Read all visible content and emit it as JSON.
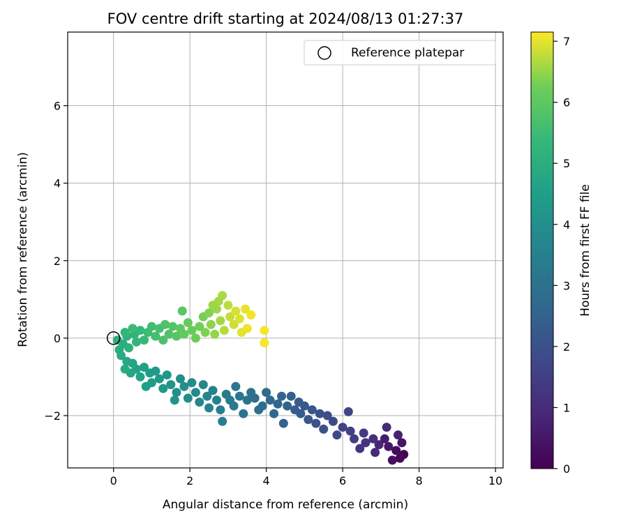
{
  "chart_data": {
    "type": "scatter",
    "title": "FOV centre drift starting at 2024/08/13 01:27:37",
    "xlabel": "Angular distance from reference (arcmin)",
    "ylabel": "Rotation from reference (arcmin)",
    "xlim": [
      -1.2,
      10.2
    ],
    "ylim": [
      -3.35,
      7.9
    ],
    "xticks": [
      0,
      2,
      4,
      6,
      8,
      10
    ],
    "xtick_labels": [
      "0",
      "2",
      "4",
      "6",
      "8",
      "10"
    ],
    "yticks": [
      -2,
      0,
      2,
      4,
      6
    ],
    "ytick_labels": [
      "−2",
      "0",
      "2",
      "4",
      "6"
    ],
    "grid": true,
    "legend": {
      "placement": "top-right",
      "entries": [
        "Reference platepar"
      ]
    },
    "reference_point": {
      "x": 0,
      "y": 0
    },
    "colorbar": {
      "label": "Hours from first FF file",
      "colormap": "viridis",
      "range": [
        0,
        7.15
      ],
      "ticks": [
        0,
        1,
        2,
        3,
        4,
        5,
        6,
        7
      ],
      "tick_labels": [
        "0",
        "1",
        "2",
        "3",
        "4",
        "5",
        "6",
        "7"
      ]
    },
    "series": [
      {
        "points": [
          [
            7.6,
            -3.0,
            0.05
          ],
          [
            7.5,
            -3.1,
            0.15
          ],
          [
            7.4,
            -2.9,
            0.25
          ],
          [
            7.3,
            -3.15,
            0.35
          ],
          [
            7.55,
            -2.7,
            0.45
          ],
          [
            7.2,
            -2.8,
            0.55
          ],
          [
            7.1,
            -2.6,
            0.65
          ],
          [
            7.45,
            -2.5,
            0.75
          ],
          [
            6.95,
            -2.75,
            0.85
          ],
          [
            6.85,
            -2.95,
            0.95
          ],
          [
            7.15,
            -2.3,
            1.0
          ],
          [
            6.8,
            -2.6,
            1.1
          ],
          [
            6.6,
            -2.7,
            1.2
          ],
          [
            6.45,
            -2.85,
            1.3
          ],
          [
            6.55,
            -2.45,
            1.4
          ],
          [
            6.3,
            -2.6,
            1.5
          ],
          [
            6.2,
            -2.4,
            1.55
          ],
          [
            6.0,
            -2.3,
            1.65
          ],
          [
            6.15,
            -1.9,
            1.7
          ],
          [
            5.85,
            -2.5,
            1.8
          ],
          [
            5.75,
            -2.15,
            1.85
          ],
          [
            5.6,
            -2.0,
            1.9
          ],
          [
            5.5,
            -2.35,
            1.95
          ],
          [
            5.4,
            -1.95,
            2.0
          ],
          [
            5.3,
            -2.2,
            2.1
          ],
          [
            5.2,
            -1.85,
            2.15
          ],
          [
            5.1,
            -2.1,
            2.2
          ],
          [
            5.0,
            -1.75,
            2.25
          ],
          [
            4.9,
            -1.95,
            2.3
          ],
          [
            4.85,
            -1.65,
            2.35
          ],
          [
            4.75,
            -1.85,
            2.4
          ],
          [
            4.65,
            -1.5,
            2.45
          ],
          [
            4.55,
            -1.75,
            2.5
          ],
          [
            4.45,
            -2.2,
            2.55
          ],
          [
            4.4,
            -1.5,
            2.6
          ],
          [
            4.3,
            -1.7,
            2.65
          ],
          [
            4.2,
            -1.95,
            2.7
          ],
          [
            4.1,
            -1.6,
            2.75
          ],
          [
            4.0,
            -1.4,
            2.8
          ],
          [
            3.9,
            -1.75,
            2.85
          ],
          [
            3.8,
            -1.85,
            2.9
          ],
          [
            3.7,
            -1.55,
            2.95
          ],
          [
            3.6,
            -1.4,
            3.0
          ],
          [
            3.5,
            -1.6,
            3.05
          ],
          [
            3.4,
            -1.95,
            3.1
          ],
          [
            3.3,
            -1.5,
            3.15
          ],
          [
            3.2,
            -1.25,
            3.2
          ],
          [
            3.15,
            -1.75,
            3.25
          ],
          [
            3.05,
            -1.6,
            3.3
          ],
          [
            2.95,
            -1.45,
            3.35
          ],
          [
            2.85,
            -2.15,
            3.4
          ],
          [
            2.8,
            -1.85,
            3.45
          ],
          [
            2.7,
            -1.6,
            3.5
          ],
          [
            2.6,
            -1.35,
            3.55
          ],
          [
            2.5,
            -1.8,
            3.6
          ],
          [
            2.45,
            -1.5,
            3.65
          ],
          [
            2.35,
            -1.2,
            3.7
          ],
          [
            2.25,
            -1.65,
            3.75
          ],
          [
            2.15,
            -1.4,
            3.8
          ],
          [
            2.05,
            -1.15,
            3.85
          ],
          [
            1.95,
            -1.55,
            3.9
          ],
          [
            1.85,
            -1.25,
            3.95
          ],
          [
            1.75,
            -1.05,
            4.0
          ],
          [
            1.65,
            -1.4,
            4.05
          ],
          [
            1.6,
            -1.6,
            4.1
          ],
          [
            1.5,
            -1.2,
            4.15
          ],
          [
            1.4,
            -0.95,
            4.2
          ],
          [
            1.3,
            -1.3,
            4.25
          ],
          [
            1.2,
            -1.05,
            4.3
          ],
          [
            1.1,
            -0.85,
            4.35
          ],
          [
            1.0,
            -1.15,
            4.4
          ],
          [
            0.95,
            -0.9,
            4.45
          ],
          [
            0.85,
            -1.25,
            4.5
          ],
          [
            0.8,
            -0.75,
            4.55
          ],
          [
            0.7,
            -1.0,
            4.6
          ],
          [
            0.6,
            -0.8,
            4.65
          ],
          [
            0.5,
            -0.65,
            4.7
          ],
          [
            0.45,
            -0.9,
            4.75
          ],
          [
            0.35,
            -0.6,
            4.8
          ],
          [
            0.3,
            -0.8,
            4.85
          ],
          [
            0.2,
            -0.45,
            4.9
          ],
          [
            0.15,
            -0.3,
            4.95
          ],
          [
            0.25,
            -0.15,
            5.0
          ],
          [
            0.1,
            -0.05,
            5.05
          ],
          [
            0.35,
            0.05,
            5.1
          ],
          [
            0.4,
            -0.25,
            5.15
          ],
          [
            0.55,
            0.1,
            5.2
          ],
          [
            0.3,
            0.15,
            5.25
          ],
          [
            0.6,
            -0.1,
            5.3
          ],
          [
            0.7,
            0.2,
            5.35
          ],
          [
            0.8,
            -0.05,
            5.4
          ],
          [
            0.5,
            0.25,
            5.45
          ],
          [
            0.9,
            0.15,
            5.5
          ],
          [
            1.0,
            0.3,
            5.55
          ],
          [
            1.1,
            0.05,
            5.6
          ],
          [
            1.2,
            0.25,
            5.65
          ],
          [
            1.3,
            -0.05,
            5.7
          ],
          [
            1.35,
            0.35,
            5.75
          ],
          [
            1.45,
            0.1,
            5.8
          ],
          [
            1.55,
            0.3,
            5.85
          ],
          [
            1.65,
            0.05,
            5.9
          ],
          [
            1.8,
            0.7,
            5.95
          ],
          [
            1.75,
            0.25,
            6.0
          ],
          [
            1.85,
            0.1,
            6.05
          ],
          [
            1.95,
            0.4,
            6.1
          ],
          [
            2.05,
            0.2,
            6.15
          ],
          [
            2.15,
            0.0,
            6.2
          ],
          [
            2.25,
            0.3,
            6.25
          ],
          [
            2.35,
            0.55,
            6.3
          ],
          [
            2.4,
            0.15,
            6.35
          ],
          [
            2.5,
            0.65,
            6.4
          ],
          [
            2.55,
            0.35,
            6.45
          ],
          [
            2.65,
            0.1,
            6.5
          ],
          [
            2.7,
            0.75,
            6.55
          ],
          [
            2.8,
            0.45,
            6.6
          ],
          [
            2.85,
            1.1,
            6.65
          ],
          [
            2.9,
            0.2,
            6.7
          ],
          [
            3.0,
            0.85,
            6.75
          ],
          [
            3.05,
            0.55,
            6.8
          ],
          [
            3.15,
            0.35,
            6.85
          ],
          [
            3.2,
            0.7,
            6.9
          ],
          [
            3.3,
            0.5,
            6.95
          ],
          [
            3.45,
            0.75,
            7.0
          ],
          [
            3.5,
            0.25,
            7.05
          ],
          [
            3.95,
            0.2,
            7.1
          ],
          [
            3.95,
            -0.12,
            7.12
          ],
          [
            3.6,
            0.6,
            7.08
          ],
          [
            2.75,
            0.95,
            6.6
          ],
          [
            2.6,
            0.85,
            6.55
          ],
          [
            3.35,
            0.15,
            7.0
          ]
        ]
      }
    ]
  }
}
